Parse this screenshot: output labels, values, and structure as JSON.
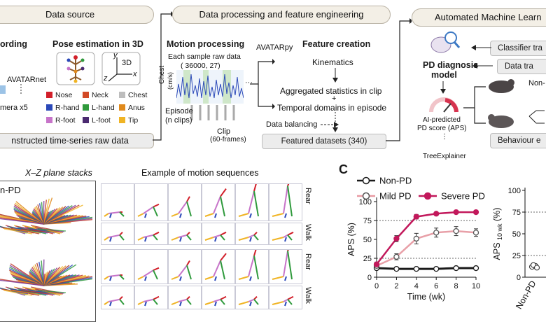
{
  "top": {
    "data_source": {
      "title": "Data source",
      "recording": "ording",
      "pose": "Pose estimation in 3D",
      "avatarnet": "AVATARnet",
      "camera": "mera x5",
      "axis_y": "y",
      "axis_x": "x",
      "axis_z": "z",
      "axis_3d": "3D",
      "legend": [
        {
          "label": "Nose",
          "color": "#d21f2a"
        },
        {
          "label": "Neck",
          "color": "#d24a26"
        },
        {
          "label": "Chest",
          "color": "#bdbdbd"
        },
        {
          "label": "R-hand",
          "color": "#2a48b8"
        },
        {
          "label": "L-hand",
          "color": "#2f9a3c"
        },
        {
          "label": "Anus",
          "color": "#e08a1c"
        },
        {
          "label": "R-foot",
          "color": "#c774c9"
        },
        {
          "label": "L-foot",
          "color": "#4b2a70"
        },
        {
          "label": "Tip",
          "color": "#f0b424"
        }
      ],
      "footer": "nstructed time-series raw data"
    },
    "processing": {
      "title": "Data processing and feature engineering",
      "motion_title": "Motion processing",
      "sample_line1": "Each sample raw data",
      "sample_line2": "( 36000, 27)",
      "chest_label": "Chest",
      "chest_unit": "(cm/s)",
      "episode": "Episode",
      "nclips": "(n clips)",
      "clip": "Clip",
      "frames": "(60-frames)",
      "avatarpy": "AVATARpy",
      "feature_title": "Feature creation",
      "kinematics": "Kinematics",
      "aggregated": "Aggregated statistics in clip",
      "plus": "+",
      "temporal": "Temporal domains in episode",
      "balancing": "Data balancing",
      "featured": "Featured datasets (340)"
    },
    "automl": {
      "title": "Automated Machine Learn",
      "classifier": "Classifier tra",
      "datatr": "Data tra",
      "model_line1": "PD diagnosis",
      "model_line2": "model",
      "ai_line1": "AI-predicted",
      "ai_line2": "PD score (APS)",
      "tree": "TreeExplainer",
      "nonpd": "Non-",
      "behaviour": "Behaviour e"
    }
  },
  "bottom_left": {
    "xz_title": "X–Z plane stacks",
    "nonpd": "n-PD",
    "seq_title": "Example of motion sequences",
    "row_labels": [
      "Rear",
      "Walk",
      "Rear",
      "Walk"
    ]
  },
  "panel_c": {
    "letter": "C",
    "legend": [
      {
        "label": "Non-PD",
        "color": "#1a1a1a",
        "fill": "#ffffff"
      },
      {
        "label": "Mild PD",
        "color": "#e89aa2",
        "fill": "#ffffff"
      },
      {
        "label": "Severe PD",
        "color": "#c2185b",
        "fill": "#c2185b"
      }
    ],
    "colors": {
      "nonpd": "#1a1a1a",
      "mild": "#e8a0a8",
      "severe": "#c2185b",
      "mild_marker": "#555555"
    }
  },
  "chart_data": [
    {
      "type": "line",
      "x": [
        0,
        2,
        4,
        6,
        8,
        10
      ],
      "series": [
        {
          "name": "Non-PD",
          "values": [
            12,
            11,
            11,
            11,
            12,
            12
          ],
          "err": [
            1,
            1,
            1,
            1,
            1,
            1
          ]
        },
        {
          "name": "Mild PD",
          "values": [
            15,
            27,
            51,
            59,
            61,
            59
          ],
          "err": [
            2,
            4,
            7,
            6,
            6,
            5
          ]
        },
        {
          "name": "Severe PD",
          "values": [
            17,
            51,
            80,
            84,
            86,
            86
          ],
          "err": [
            3,
            4,
            3,
            2,
            2,
            2
          ]
        }
      ],
      "xlabel": "Time  (wk)",
      "ylabel": "APS (%)",
      "xlim": [
        0,
        10
      ],
      "ylim": [
        0,
        100
      ],
      "xticks": [
        "0",
        "2",
        "4",
        "6",
        "8",
        "10"
      ],
      "yticks": [
        "0",
        "25",
        "50",
        "75",
        "100"
      ],
      "reference_lines": [
        25,
        75
      ]
    },
    {
      "type": "scatter",
      "categories": [
        "Non-PD"
      ],
      "ylabel": "APS",
      "ylabel_sub": "10 wk",
      "ylabel_unit": "(%)",
      "yticks": [
        "0",
        "25",
        "50",
        "75",
        "100"
      ],
      "ylim": [
        0,
        100
      ],
      "values": [
        12,
        13,
        14,
        11
      ],
      "reference_lines": [
        25,
        75
      ]
    }
  ]
}
